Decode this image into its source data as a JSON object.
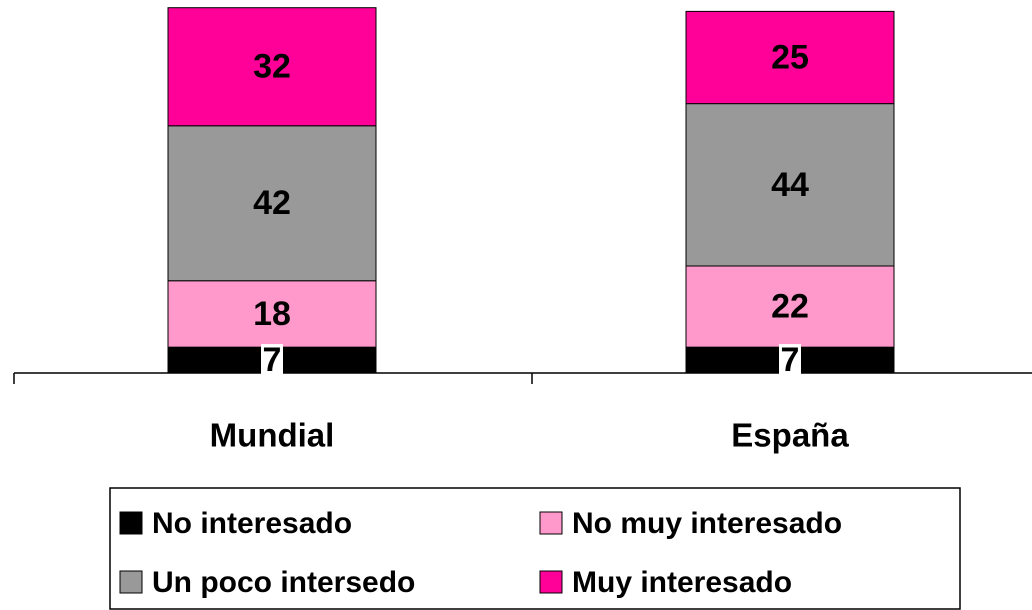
{
  "chart_data": {
    "type": "stacked_bar",
    "categories": [
      "Mundial",
      "España"
    ],
    "series": [
      {
        "name": "No interesado",
        "color": "#000000",
        "values": [
          7,
          7
        ]
      },
      {
        "name": "No muy interesado",
        "color": "#ff99cc",
        "values": [
          18,
          22
        ]
      },
      {
        "name": "Un poco intersedo",
        "color": "#999999",
        "values": [
          42,
          44
        ]
      },
      {
        "name": "Muy interesado",
        "color": "#ff0099",
        "values": [
          32,
          25
        ]
      }
    ],
    "ylim": [
      0,
      100
    ]
  }
}
